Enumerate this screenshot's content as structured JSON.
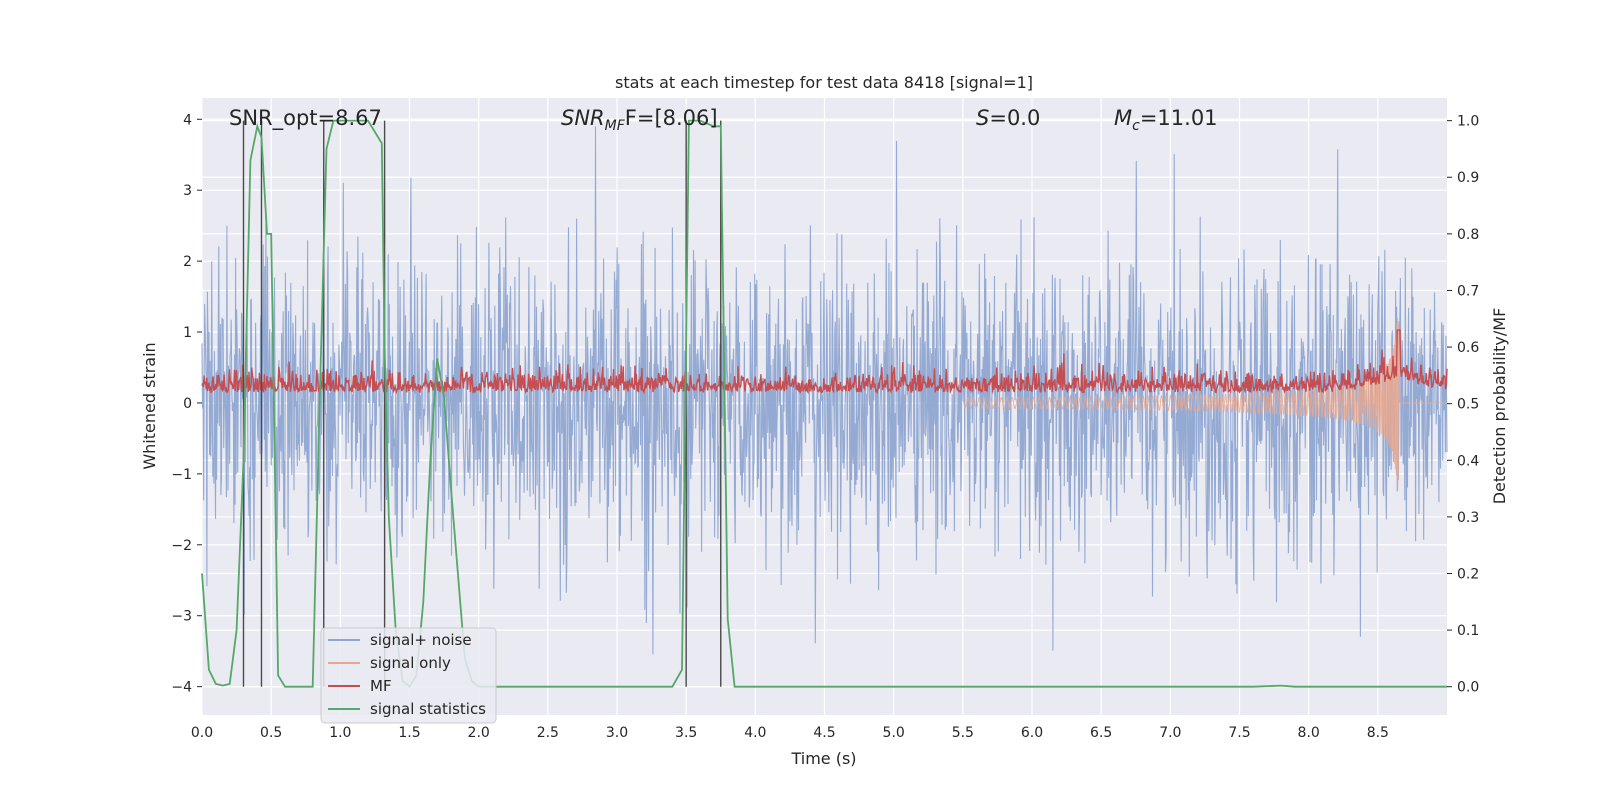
{
  "chart_data": {
    "type": "line",
    "title": "stats at each timestep for test data 8418 [signal=1]",
    "xlabel": "Time (s)",
    "ylabel": "Whitened strain",
    "y2label": "Detection probability/MF",
    "xlim": [
      0,
      9.0
    ],
    "ylim": [
      -4.4,
      4.3
    ],
    "y2lim": [
      -0.05,
      1.04
    ],
    "xticks": [
      "0.0",
      "0.5",
      "1.0",
      "1.5",
      "2.0",
      "2.5",
      "3.0",
      "3.5",
      "4.0",
      "4.5",
      "5.0",
      "5.5",
      "6.0",
      "6.5",
      "7.0",
      "7.5",
      "8.0",
      "8.5"
    ],
    "yticks": [
      "4",
      "3",
      "2",
      "1",
      "0",
      "−1",
      "−2",
      "−3",
      "−4"
    ],
    "y2ticks": [
      "1.0",
      "0.9",
      "0.8",
      "0.7",
      "0.6",
      "0.5",
      "0.4",
      "0.3",
      "0.2",
      "0.1",
      "0.0"
    ],
    "grid": true,
    "legend_position": "lower-left",
    "annotations": {
      "snr_opt": "SNR_opt=8.67",
      "snr_mf_base": "SNR",
      "snr_mf_sub": "MF",
      "snr_mf_rest": "F=[8.06]",
      "s_var": "S",
      "s_rest": "=0.0",
      "mc_var": "M",
      "mc_sub": "c",
      "mc_rest": "=11.01"
    },
    "series": [
      {
        "name": "signal+ noise",
        "color": "#8fa6d1",
        "description_kind": "noise",
        "amplitude_range": [
          -3.9,
          3.9
        ]
      },
      {
        "name": "signal only",
        "color": "#e8a88f",
        "description_kind": "chirp",
        "peak_time": 8.65,
        "peak_amplitude": 1.5
      },
      {
        "name": "MF",
        "color": "#c44e52",
        "description_kind": "matched-filter",
        "baseline_prob": 0.52
      },
      {
        "name": "signal statistics",
        "color": "#55a868",
        "x": [
          0.0,
          0.05,
          0.1,
          0.15,
          0.2,
          0.25,
          0.3,
          0.35,
          0.4,
          0.43,
          0.47,
          0.5,
          0.55,
          0.6,
          0.65,
          0.7,
          0.8,
          0.85,
          0.9,
          0.95,
          1.0,
          1.1,
          1.2,
          1.3,
          1.32,
          1.35,
          1.4,
          1.45,
          1.5,
          1.55,
          1.6,
          1.65,
          1.7,
          1.75,
          1.8,
          1.85,
          1.9,
          1.95,
          2.0,
          2.1,
          2.3,
          2.5,
          3.0,
          3.4,
          3.47,
          3.52,
          3.6,
          3.7,
          3.75,
          3.8,
          3.85,
          3.9,
          4.5,
          5.0,
          6.0,
          7.0,
          7.6,
          7.8,
          7.9,
          8.5,
          9.0
        ],
        "y": [
          0.2,
          0.03,
          0.005,
          0.002,
          0.005,
          0.1,
          0.4,
          0.93,
          0.99,
          0.97,
          0.8,
          0.8,
          0.02,
          0.0,
          0.0,
          0.0,
          0.0,
          0.5,
          0.95,
          1.0,
          1.0,
          1.0,
          1.0,
          0.96,
          0.6,
          0.3,
          0.1,
          0.01,
          0.0,
          0.02,
          0.15,
          0.4,
          0.58,
          0.51,
          0.35,
          0.2,
          0.05,
          0.01,
          0.0,
          0.0,
          0.0,
          0.0,
          0.0,
          0.0,
          0.03,
          1.0,
          1.0,
          0.99,
          0.99,
          0.12,
          0.0,
          0.0,
          0.0,
          0.0,
          0.0,
          0.0,
          0.0,
          0.002,
          0.0,
          0.0,
          0.0
        ]
      },
      {
        "name": "vertical markers",
        "color": "#4a4a4a",
        "x": [
          0.3,
          0.43,
          0.88,
          1.32,
          3.5,
          3.75
        ]
      }
    ]
  }
}
